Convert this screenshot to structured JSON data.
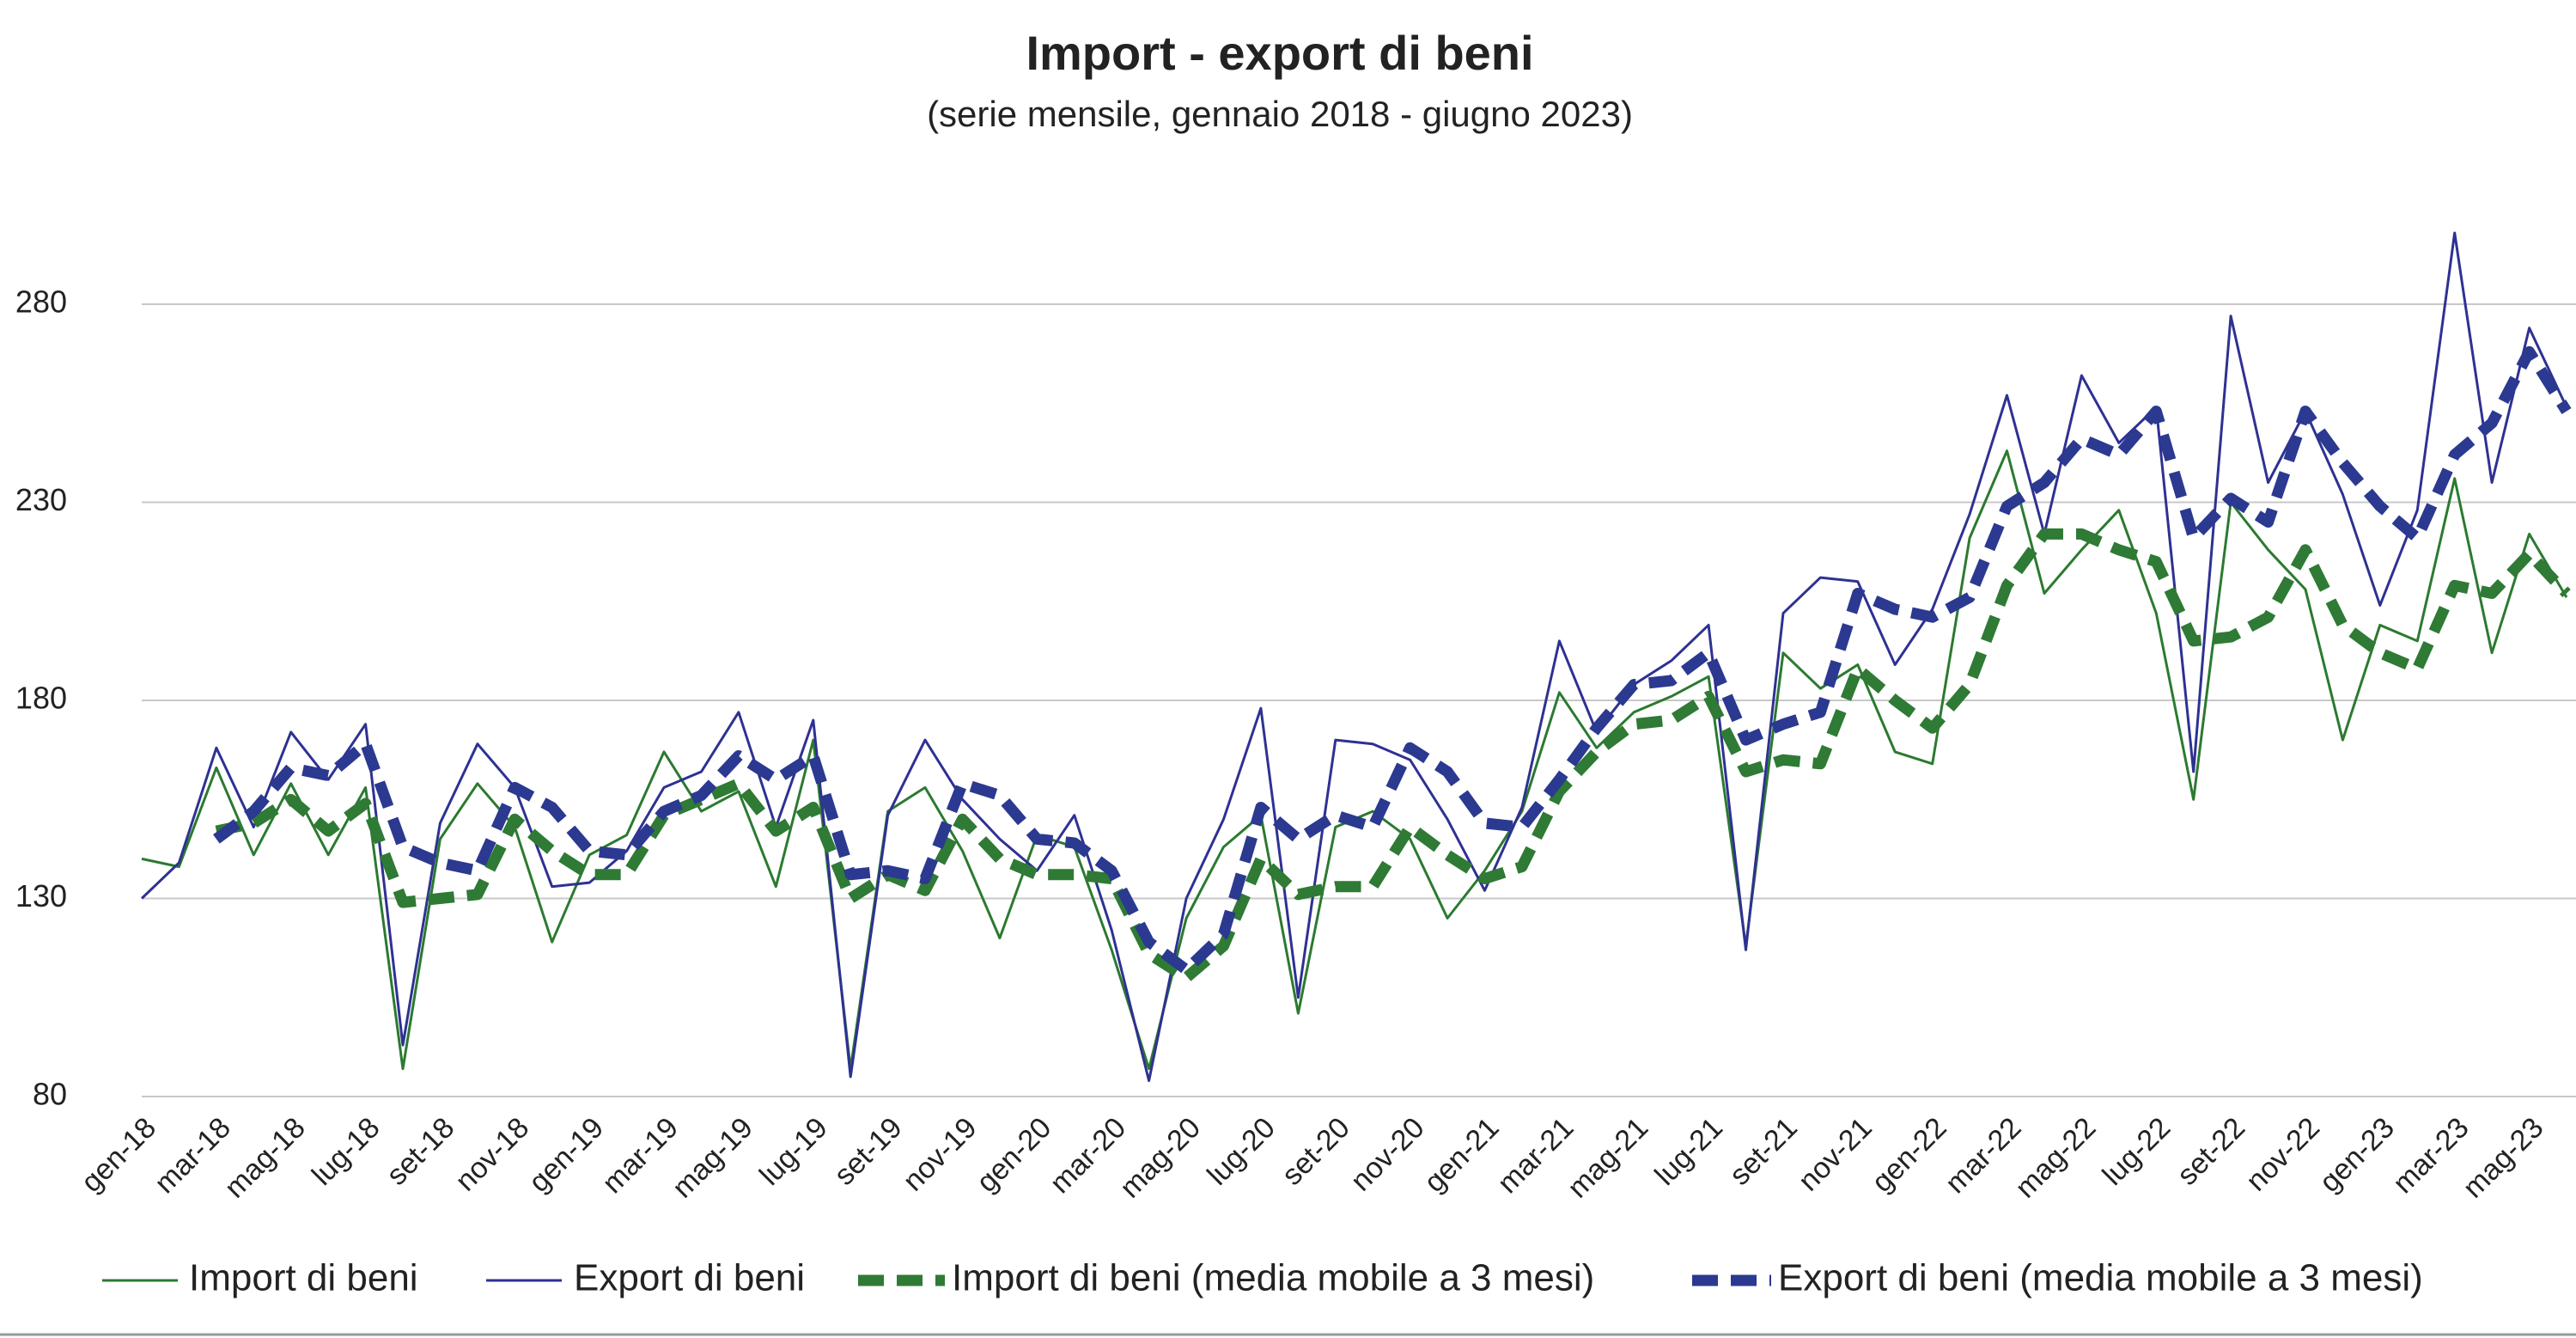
{
  "chart_data": {
    "type": "line",
    "title": "Import - export di beni",
    "subtitle": "(serie mensile, gennaio 2018 - giugno 2023)",
    "categories": [
      "gen-18",
      null,
      "mar-18",
      null,
      "mag-18",
      null,
      "lug-18",
      null,
      "set-18",
      null,
      "nov-18",
      null,
      "gen-19",
      null,
      "mar-19",
      null,
      "mag-19",
      null,
      "lug-19",
      null,
      "set-19",
      null,
      "nov-19",
      null,
      "gen-20",
      null,
      "mar-20",
      null,
      "mag-20",
      null,
      "lug-20",
      null,
      "set-20",
      null,
      "nov-20",
      null,
      "gen-21",
      null,
      "mar-21",
      null,
      "mag-21",
      null,
      "lug-21",
      null,
      "set-21",
      null,
      "nov-21",
      null,
      "gen-22",
      null,
      "mar-22",
      null,
      "mag-22",
      null,
      "lug-22",
      null,
      "set-22",
      null,
      "nov-22",
      null,
      "gen-23",
      null,
      "mar-23",
      null,
      "mag-23",
      null
    ],
    "series": [
      {
        "name": "Import di beni",
        "color": "#2b7a30",
        "style": "solid",
        "values": [
          140,
          138,
          163,
          141,
          159,
          141,
          158,
          87,
          145,
          159,
          148,
          119,
          141,
          146,
          167,
          152,
          157,
          133,
          170,
          87,
          152,
          158,
          142,
          120,
          146,
          143,
          117,
          87,
          125,
          143,
          151,
          101,
          148,
          152,
          145,
          125,
          137,
          152,
          182,
          168,
          177,
          181,
          186,
          118,
          192,
          183,
          189,
          167,
          164,
          221,
          243,
          207,
          218,
          228,
          202,
          155,
          230,
          218,
          208,
          170,
          199,
          195,
          236,
          192,
          222,
          206
        ]
      },
      {
        "name": "Export di beni",
        "color": "#2e3192",
        "style": "solid",
        "values": [
          130,
          139,
          168,
          148,
          172,
          160,
          174,
          93,
          149,
          169,
          158,
          133,
          134,
          142,
          158,
          162,
          177,
          148,
          175,
          85,
          151,
          170,
          155,
          145,
          137,
          151,
          122,
          84,
          130,
          150,
          178,
          105,
          170,
          169,
          165,
          150,
          132,
          153,
          195,
          172,
          184,
          190,
          199,
          117,
          202,
          211,
          210,
          189,
          203,
          227,
          257,
          222,
          262,
          245,
          254,
          162,
          277,
          235,
          253,
          232,
          204,
          228,
          298,
          235,
          274,
          254
        ]
      },
      {
        "name": "Import di beni (media mobile a 3 mesi)",
        "color": "#2f7a35",
        "style": "dashed",
        "values": [
          null,
          null,
          147,
          149,
          155,
          147,
          154,
          129,
          130,
          131,
          150,
          142,
          136,
          136,
          151,
          155,
          159,
          147,
          153,
          130,
          136,
          132,
          150,
          140,
          136,
          136,
          135,
          116,
          110,
          118,
          140,
          131,
          133,
          133,
          148,
          141,
          135,
          138,
          157,
          167,
          174,
          175,
          181,
          162,
          165,
          164,
          188,
          180,
          173,
          184,
          209,
          222,
          222,
          218,
          215,
          195,
          196,
          201,
          218,
          199,
          192,
          188,
          209,
          207,
          217,
          207
        ]
      },
      {
        "name": "Export di beni (media mobile a 3 mesi)",
        "color": "#2b3990",
        "style": "dashed",
        "values": [
          null,
          null,
          145,
          152,
          163,
          161,
          169,
          143,
          139,
          137,
          158,
          153,
          142,
          141,
          152,
          156,
          166,
          160,
          166,
          136,
          137,
          135,
          159,
          156,
          145,
          144,
          137,
          119,
          112,
          121,
          153,
          145,
          151,
          148,
          168,
          162,
          149,
          148,
          160,
          173,
          184,
          185,
          192,
          170,
          174,
          177,
          207,
          203,
          201,
          206,
          229,
          235,
          246,
          242,
          253,
          221,
          231,
          225,
          253,
          240,
          229,
          221,
          242,
          250,
          268,
          253
        ]
      }
    ],
    "ylim": [
      80,
      305
    ],
    "yticks": [
      80,
      130,
      180,
      230,
      280
    ],
    "grid": true,
    "legend": "bottom"
  }
}
